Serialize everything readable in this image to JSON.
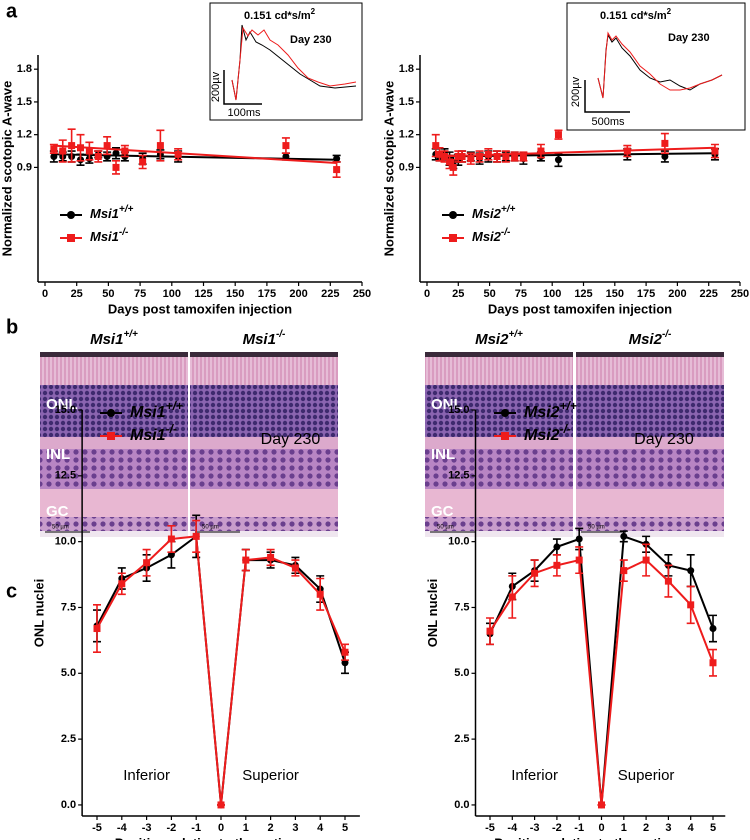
{
  "figure": {
    "panel_labels": [
      "a",
      "b",
      "c"
    ]
  },
  "histology": {
    "headers": [
      {
        "gene": "Msi1",
        "genotype": "+/+"
      },
      {
        "gene": "Msi1",
        "genotype": "-/-"
      },
      {
        "gene": "Msi2",
        "genotype": "+/+"
      },
      {
        "gene": "Msi2",
        "genotype": "-/-"
      }
    ],
    "layers": [
      "ONL",
      "INL",
      "GC"
    ],
    "scale": "50 µm"
  },
  "chart_data": [
    {
      "type": "scatter",
      "ylabel": "Normalized scotopic A-wave",
      "xlabel": "Days post tamoxifen injection",
      "xlim": [
        0,
        250
      ],
      "xticks": [
        0,
        25,
        50,
        75,
        100,
        125,
        150,
        175,
        200,
        225,
        250
      ],
      "ylim": [
        -0.15,
        1.93
      ],
      "yticks": [
        0.9,
        1.2,
        1.5,
        1.8
      ],
      "x": [
        7,
        14,
        21,
        28,
        35,
        42,
        49,
        56,
        63,
        77,
        91,
        105,
        190,
        230
      ],
      "fit_x": [
        7,
        230
      ],
      "series": [
        {
          "name": "Msi1",
          "superscript": "+/+",
          "color": "#000000",
          "marker": "circle",
          "values": [
            1.0,
            1.0,
            1.0,
            0.97,
            0.98,
            1.02,
            1.0,
            1.03,
            1.0,
            0.98,
            1.02,
            1.0,
            1.0,
            0.98
          ],
          "errors": [
            0.05,
            0.04,
            0.05,
            0.05,
            0.04,
            0.03,
            0.04,
            0.05,
            0.04,
            0.05,
            0.04,
            0.05,
            0.03,
            0.03
          ],
          "fit": [
            1.02,
            0.97
          ]
        },
        {
          "name": "Msi1",
          "superscript": "-/-",
          "color": "#ee1c1c",
          "marker": "square",
          "values": [
            1.07,
            1.05,
            1.1,
            1.08,
            1.05,
            1.0,
            1.1,
            0.9,
            1.05,
            0.95,
            1.1,
            1.02,
            1.1,
            0.88
          ],
          "errors": [
            0.04,
            0.1,
            0.15,
            0.12,
            0.08,
            0.05,
            0.08,
            0.06,
            0.05,
            0.06,
            0.14,
            0.05,
            0.07,
            0.07
          ],
          "fit": [
            1.1,
            0.94
          ]
        }
      ],
      "inset": {
        "flash": "0.151 cd*s/m",
        "flash_sup": "2",
        "day": "Day 230",
        "scale_y": "200µv",
        "scale_x": "100ms"
      }
    },
    {
      "type": "scatter",
      "ylabel": "Normalized scotopic A-wave",
      "xlabel": "Days post tamoxifen injection",
      "xlim": [
        0,
        250
      ],
      "xticks": [
        0,
        25,
        50,
        75,
        100,
        125,
        150,
        175,
        200,
        225,
        250
      ],
      "ylim": [
        -0.15,
        1.93
      ],
      "yticks": [
        0.9,
        1.2,
        1.5,
        1.8
      ],
      "x": [
        7,
        10,
        14,
        18,
        21,
        25,
        28,
        35,
        42,
        49,
        56,
        63,
        70,
        77,
        91,
        105,
        160,
        190,
        230
      ],
      "fit_x": [
        7,
        230
      ],
      "series": [
        {
          "name": "Msi2",
          "superscript": "+/+",
          "color": "#000000",
          "marker": "circle",
          "values": [
            1.02,
            1.0,
            1.02,
            0.98,
            0.95,
            0.97,
            1.0,
            1.0,
            0.98,
            1.0,
            1.0,
            1.0,
            1.0,
            0.98,
            1.0,
            0.97,
            1.02,
            1.0,
            1.02
          ],
          "errors": [
            0.05,
            0.04,
            0.05,
            0.06,
            0.06,
            0.05,
            0.05,
            0.04,
            0.05,
            0.05,
            0.05,
            0.04,
            0.04,
            0.05,
            0.04,
            0.06,
            0.05,
            0.05,
            0.05
          ],
          "fit": [
            1.0,
            1.03
          ]
        },
        {
          "name": "Msi2",
          "superscript": "-/-",
          "color": "#ee1c1c",
          "marker": "square",
          "values": [
            1.1,
            1.02,
            1.0,
            0.95,
            0.9,
            1.0,
            1.0,
            0.98,
            1.0,
            1.02,
            1.0,
            1.0,
            1.0,
            1.0,
            1.05,
            1.2,
            1.05,
            1.12,
            1.05
          ],
          "errors": [
            0.1,
            0.06,
            0.05,
            0.06,
            0.07,
            0.05,
            0.05,
            0.05,
            0.05,
            0.05,
            0.05,
            0.05,
            0.04,
            0.04,
            0.06,
            0.04,
            0.05,
            0.09,
            0.06
          ],
          "fit": [
            1.0,
            1.08
          ]
        }
      ],
      "inset": {
        "flash": "0.151 cd*s/m",
        "flash_sup": "2",
        "day": "Day 230",
        "scale_y": "200µv",
        "scale_x": "500ms"
      }
    },
    {
      "type": "line",
      "ylabel": "ONL nuclei",
      "xlabel": "Position relative to the optic nerve",
      "annotations": [
        "Day 230",
        "Inferior",
        "Superior"
      ],
      "xlim": [
        -5.6,
        5.6
      ],
      "xticks": [
        -5,
        -4,
        -3,
        -2,
        -1,
        0,
        1,
        2,
        3,
        4,
        5
      ],
      "ylim": [
        -0.42,
        15
      ],
      "yticks": [
        {
          "value": 0,
          "label": "0.0"
        },
        2.5,
        {
          "value": 5,
          "label": "5.0"
        },
        7.5,
        {
          "value": 10,
          "label": "10.0"
        },
        12.5,
        {
          "value": 15,
          "label": "15.0"
        }
      ],
      "x": [
        -5,
        -4,
        -3,
        -2,
        -1,
        0,
        1,
        2,
        3,
        4,
        5
      ],
      "series": [
        {
          "name": "Msi1",
          "superscript": "+/+",
          "color": "#000000",
          "marker": "circle",
          "values": [
            6.8,
            8.6,
            9.0,
            9.5,
            10.2,
            0,
            9.3,
            9.3,
            9.1,
            8.2,
            5.4
          ],
          "errors": [
            0.6,
            0.4,
            0.5,
            0.5,
            0.8,
            0,
            0.4,
            0.3,
            0.3,
            0.5,
            0.4
          ]
        },
        {
          "name": "Msi1",
          "superscript": "-/-",
          "color": "#ee1c1c",
          "marker": "square",
          "values": [
            6.7,
            8.4,
            9.2,
            10.1,
            10.2,
            0,
            9.3,
            9.4,
            9.0,
            8.0,
            5.8
          ],
          "errors": [
            0.9,
            0.4,
            0.5,
            0.5,
            0.6,
            0,
            0.4,
            0.3,
            0.3,
            0.6,
            0.3
          ]
        }
      ]
    },
    {
      "type": "line",
      "ylabel": "ONL nuclei",
      "xlabel": "Position relative to the optic nerve",
      "annotations": [
        "Day 230",
        "Inferior",
        "Superior"
      ],
      "xlim": [
        -5.65,
        5.55
      ],
      "xticks": [
        -5,
        -4,
        -3,
        -2,
        -1,
        0,
        1,
        2,
        3,
        4,
        5
      ],
      "ylim": [
        -0.42,
        15
      ],
      "yticks": [
        {
          "value": 0,
          "label": "0.0"
        },
        2.5,
        {
          "value": 5,
          "label": "5.0"
        },
        7.5,
        {
          "value": 10,
          "label": "10.0"
        },
        12.5,
        {
          "value": 15,
          "label": "15.0"
        }
      ],
      "x": [
        -5,
        -4,
        -3,
        -2,
        -1,
        0,
        1,
        2,
        3,
        4,
        5
      ],
      "series": [
        {
          "name": "Msi2",
          "superscript": "+/+",
          "color": "#000000",
          "marker": "circle",
          "values": [
            6.5,
            8.3,
            8.9,
            9.8,
            10.1,
            0,
            10.2,
            9.9,
            9.1,
            8.9,
            6.7
          ],
          "errors": [
            0.4,
            0.5,
            0.4,
            0.3,
            0.4,
            0,
            0.2,
            0.3,
            0.4,
            0.6,
            0.5
          ]
        },
        {
          "name": "Msi2",
          "superscript": "-/-",
          "color": "#ee1c1c",
          "marker": "square",
          "values": [
            6.6,
            7.9,
            8.8,
            9.1,
            9.3,
            0,
            8.9,
            9.3,
            8.5,
            7.6,
            5.4
          ],
          "errors": [
            0.5,
            0.8,
            0.5,
            0.4,
            0.5,
            0,
            0.4,
            0.6,
            0.6,
            0.7,
            0.5
          ]
        }
      ]
    }
  ]
}
